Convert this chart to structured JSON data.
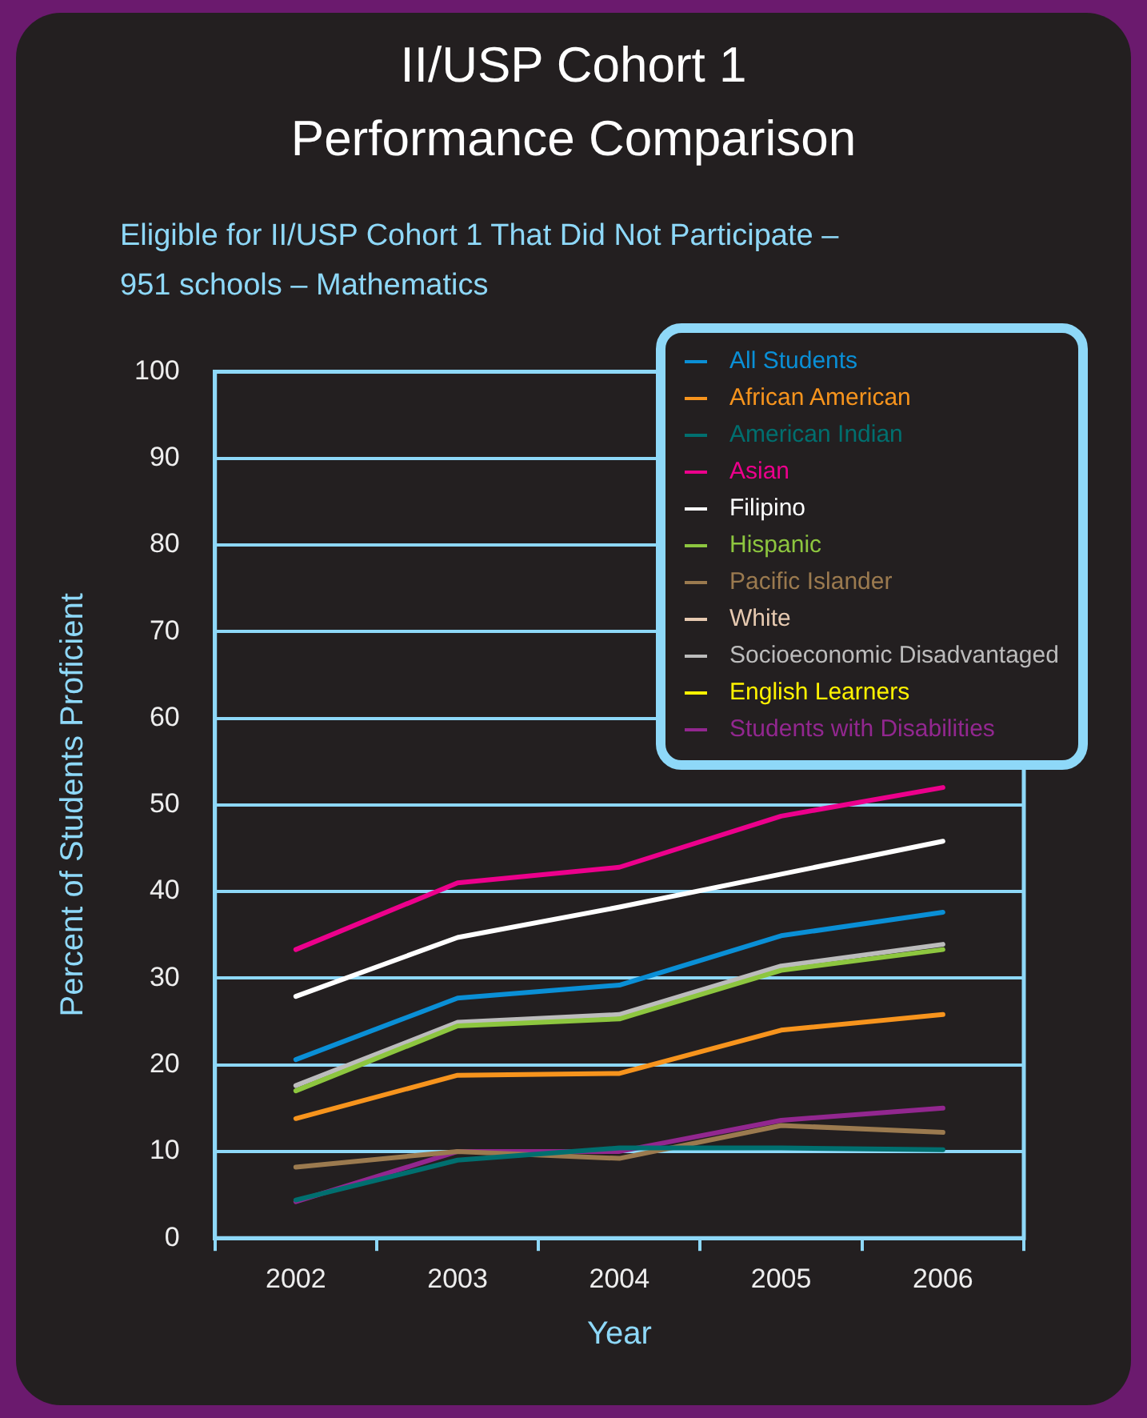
{
  "chart_data": {
    "type": "line",
    "title": "II/USP Cohort 1\nPerformance Comparison",
    "subtitle": "Eligible for II/USP Cohort 1 That Did Not Participate –\n951 schools – Mathematics",
    "xlabel": "Year",
    "ylabel": "Percent of Students Proficient",
    "categories": [
      "2002",
      "2003",
      "2004",
      "2005",
      "2006"
    ],
    "ylim": [
      0,
      100
    ],
    "yticks": [
      0,
      10,
      20,
      30,
      40,
      50,
      60,
      70,
      80,
      90,
      100
    ],
    "grid": "y",
    "legend": "top right",
    "marker": "none",
    "line_style": "solid",
    "series": [
      {
        "name": "All Students",
        "color": "#0a8fd6",
        "values": [
          20.6,
          27.7,
          29.2,
          34.9,
          37.6
        ]
      },
      {
        "name": "African American",
        "color": "#f7941d",
        "values": [
          13.8,
          18.8,
          19,
          24,
          25.8
        ]
      },
      {
        "name": "American Indian",
        "color": "#006f6f",
        "values": [
          4.4,
          9,
          10.4,
          10.4,
          10.2
        ]
      },
      {
        "name": "Asian",
        "color": "#ec008c",
        "values": [
          33.3,
          41,
          42.8,
          48.7,
          52
        ]
      },
      {
        "name": "Filipino",
        "color": "#ffffff",
        "values": [
          27.9,
          34.7,
          38.2,
          42,
          45.8
        ]
      },
      {
        "name": "Hispanic",
        "color": "#8dc63f",
        "values": [
          17,
          24.5,
          25.3,
          30.9,
          33.3
        ]
      },
      {
        "name": "Pacific Islander",
        "color": "#9b7a4f",
        "values": [
          8.2,
          10,
          9.2,
          13,
          12.2
        ]
      },
      {
        "name": "White",
        "color": "#e6c9b0",
        "values": [
          null,
          null,
          null,
          null,
          null
        ]
      },
      {
        "name": "Socioeconomic Disadvantaged",
        "color": "#bcbcbc",
        "values": [
          17.6,
          24.9,
          25.8,
          31.4,
          33.9
        ]
      },
      {
        "name": "English Learners",
        "color": "#fff200",
        "values": [
          null,
          null,
          null,
          null,
          null
        ]
      },
      {
        "name": "Students with Disabilities",
        "color": "#92278f",
        "values": [
          4.2,
          10,
          10,
          13.6,
          15
        ]
      }
    ]
  }
}
